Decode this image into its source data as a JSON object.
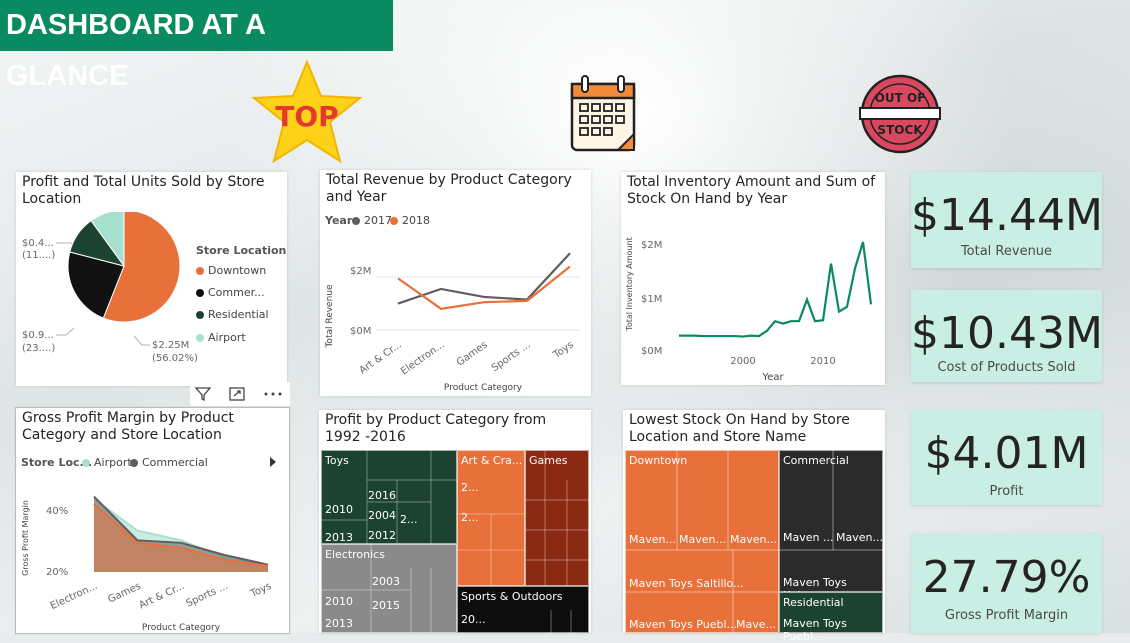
{
  "banner": {
    "title": "DASHBOARD AT A GLANCE"
  },
  "icons": {
    "top": "TOP",
    "out_of_stock_1": "OUT OF",
    "out_of_stock_2": "STOCK"
  },
  "colors": {
    "accent": "#0a8a60",
    "orange": "#e8703a",
    "gray": "#605e5c",
    "kpi_bg": "#c9efe4",
    "dark_green": "#1c4332",
    "teal": "#a8e0cf"
  },
  "pie": {
    "title": "Profit and Total Units Sold by Store Location",
    "legend_title": "Store Location",
    "legend": [
      "Downtown",
      "Commer...",
      "Residential",
      "Airport"
    ],
    "label_a1": "$0.4...",
    "label_a2": "(11....)",
    "label_b1": "$0.9...",
    "label_b2": "(23....)",
    "label_c1": "$2.25M",
    "label_c2": "(56.02%)"
  },
  "revenue": {
    "title": "Total Revenue by Product Category and Year",
    "legend_title": "Year",
    "years": [
      "2017",
      "2018"
    ],
    "ylabel": "Total Revenue",
    "xlabel": "Product Category",
    "yticks": [
      "$2M",
      "$0M"
    ],
    "xticks": [
      "Art & Cr...",
      "Electron...",
      "Games",
      "Sports ...",
      "Toys"
    ]
  },
  "inventory": {
    "title": "Total Inventory Amount and Sum of Stock On Hand by Year",
    "ylabel": "Total Inventory Amount",
    "xlabel": "Year",
    "yticks": [
      "$2M",
      "$1M",
      "$0M"
    ],
    "xticks": [
      "2000",
      "2010"
    ]
  },
  "kpis": [
    {
      "value": "$14.44M",
      "label": "Total Revenue"
    },
    {
      "value": "$10.43M",
      "label": "Cost of Products Sold"
    },
    {
      "value": "$4.01M",
      "label": "Profit"
    },
    {
      "value": "27.79%",
      "label": "Gross Profit Margin"
    }
  ],
  "gpm": {
    "title": "Gross Profit Margin by Product Category and Store Location",
    "legend_title": "Store Loc...",
    "legend": [
      "Airport",
      "Commercial"
    ],
    "ylabel": "Gross Profit Margin",
    "xlabel": "Product Category",
    "yticks": [
      "40%",
      "20%"
    ],
    "xticks": [
      "Electron...",
      "Games",
      "Art & Cr...",
      "Sports ...",
      "Toys"
    ]
  },
  "treemap1": {
    "title": "Profit by Product Category from 1992 -2016",
    "toys": "Toys",
    "t2016": "2016",
    "t2010": "2010",
    "t2004": "2004",
    "t2dots": "2...",
    "t2013": "2013",
    "t2012": "2012",
    "electronics": "Electronics",
    "e2003": "2003",
    "e2010": "2010",
    "e2015": "2015",
    "e2013": "2013",
    "art": "Art & Cra...",
    "a2a": "2...",
    "a2b": "2...",
    "games": "Games",
    "sports": "Sports & Outdoors",
    "s20": "20..."
  },
  "treemap2": {
    "title": "Lowest Stock On Hand by Store Location and Store Name",
    "downtown": "Downtown",
    "commercial": "Commercial",
    "residential": "Residential",
    "d1": "Maven...",
    "d2": "Maven...",
    "d3": "Maven...",
    "d4": "Maven Toys Saltillo...",
    "d5": "Maven Toys Puebl...",
    "d6": "Mave...",
    "c1": "Maven ...",
    "c2": "Maven...",
    "c3": "Maven Toys Xalap...",
    "r1": "Maven Toys Puebl..."
  },
  "chart_data": [
    {
      "type": "pie",
      "title": "Profit and Total Units Sold by Store Location",
      "categories": [
        "Downtown",
        "Commercial",
        "Residential",
        "Airport"
      ],
      "values": [
        56.02,
        23,
        11,
        9.98
      ],
      "colors": [
        "#e8703a",
        "#111111",
        "#1c4332",
        "#a8e0cf"
      ]
    },
    {
      "type": "line",
      "title": "Total Revenue by Product Category and Year",
      "categories": [
        "Art & Cr...",
        "Electron...",
        "Games",
        "Sports ...",
        "Toys"
      ],
      "series": [
        {
          "name": "2017",
          "values": [
            1.0,
            1.55,
            1.25,
            1.15,
            2.9
          ]
        },
        {
          "name": "2018",
          "values": [
            1.95,
            0.8,
            1.05,
            1.1,
            2.4
          ]
        }
      ],
      "ylim": [
        0,
        3.4
      ],
      "ylabel": "Total Revenue",
      "xlabel": "Product Category"
    },
    {
      "type": "line",
      "title": "Total Inventory Amount and Sum of Stock On Hand by Year",
      "x": [
        1992,
        1993,
        1994,
        1995,
        1996,
        1997,
        1998,
        1999,
        2000,
        2001,
        2002,
        2003,
        2004,
        2005,
        2006,
        2007,
        2008,
        2009,
        2010,
        2011,
        2012,
        2013,
        2014,
        2015,
        2016
      ],
      "series": [
        {
          "values": [
            0.3,
            0.3,
            0.3,
            0.29,
            0.29,
            0.29,
            0.29,
            0.29,
            0.28,
            0.3,
            0.29,
            0.4,
            0.6,
            0.55,
            0.6,
            0.6,
            1.05,
            0.6,
            0.62,
            1.8,
            0.8,
            0.9,
            1.7,
            2.25,
            0.95
          ]
        }
      ],
      "ylim": [
        0,
        2.5
      ],
      "ylabel": "Total Inventory Amount",
      "xlabel": "Year"
    },
    {
      "type": "area",
      "title": "Gross Profit Margin by Product Category and Store Location",
      "categories": [
        "Electron...",
        "Games",
        "Art & Cr...",
        "Sports ...",
        "Toys"
      ],
      "series": [
        {
          "name": "Airport",
          "values": [
            48,
            35,
            31,
            24,
            21
          ]
        },
        {
          "name": "Commercial",
          "values": [
            49,
            31,
            30,
            25,
            21
          ]
        },
        {
          "values": [
            46,
            30,
            28,
            23,
            20.5
          ]
        }
      ],
      "ylim": [
        18,
        55
      ],
      "ylabel": "Gross Profit Margin",
      "xlabel": "Product Category"
    }
  ]
}
